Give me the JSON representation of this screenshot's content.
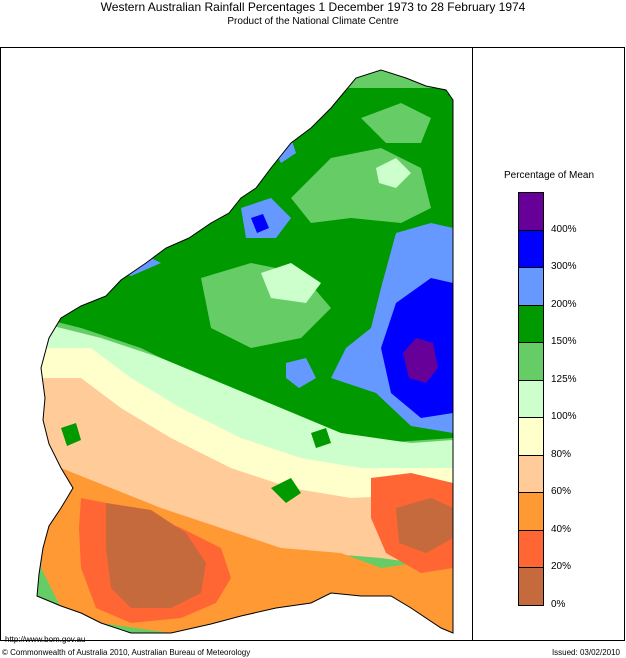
{
  "title": "Western Australian Rainfall Percentages 1 December 1973 to 28 February 1974",
  "subtitle": "Product of the National Climate Centre",
  "legend": {
    "title": "Percentage of Mean",
    "bins": [
      {
        "color": "#c46a3c"
      },
      {
        "color": "#ff6633"
      },
      {
        "color": "#ff9933"
      },
      {
        "color": "#ffcc99"
      },
      {
        "color": "#ffffcc"
      },
      {
        "color": "#ccffcc"
      },
      {
        "color": "#66cc66"
      },
      {
        "color": "#009900"
      },
      {
        "color": "#6699ff"
      },
      {
        "color": "#0000ff"
      },
      {
        "color": "#660099"
      }
    ],
    "ticks": [
      "0%",
      "20%",
      "40%",
      "60%",
      "80%",
      "100%",
      "125%",
      "150%",
      "200%",
      "300%",
      "400%"
    ]
  },
  "footer": {
    "url": "http://www.bom.gov.au",
    "copyright": "© Commonwealth of Australia 2010, Australian Bureau of Meteorology",
    "issued": "Issued: 03/02/2010"
  }
}
